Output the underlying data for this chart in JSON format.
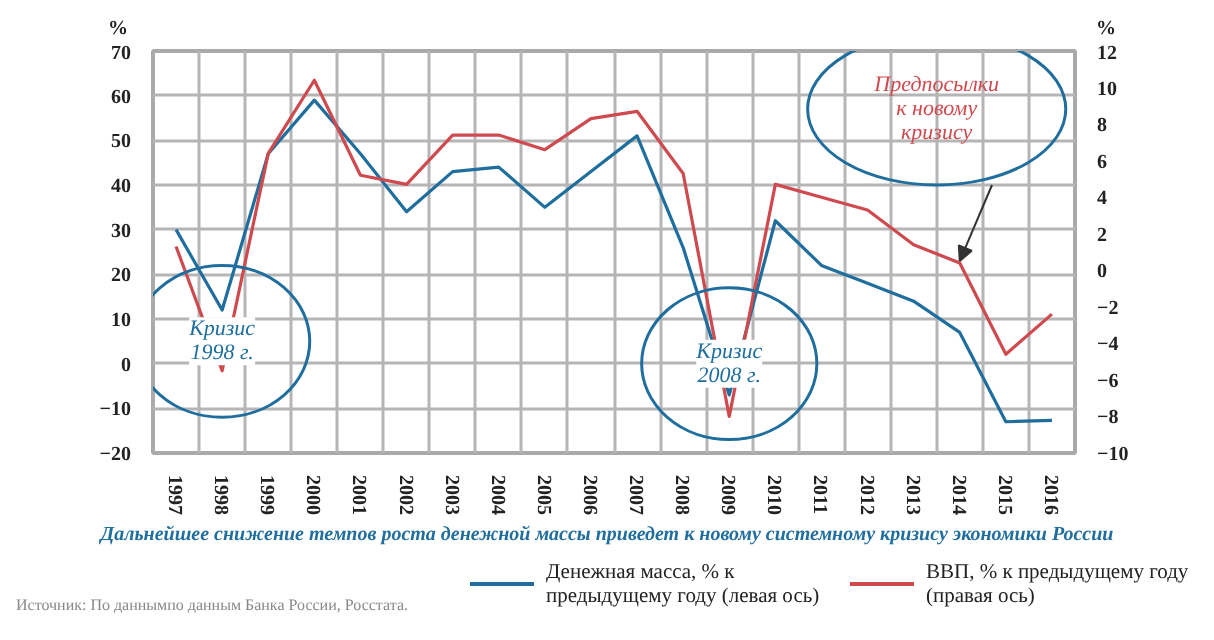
{
  "chart_data": {
    "type": "line",
    "categories": [
      "1997",
      "1998",
      "1999",
      "2000",
      "2001",
      "2002",
      "2003",
      "2004",
      "2005",
      "2006",
      "2007",
      "2008",
      "2009",
      "2010",
      "2011",
      "2012",
      "2013",
      "2014",
      "2015",
      "2016"
    ],
    "series": [
      {
        "name": "Денежная масса, % к предыдущему году (левая ось)",
        "color": "#1f6e9e",
        "values": [
          30,
          12,
          47,
          59,
          47,
          34,
          43,
          44,
          35,
          43,
          51,
          26,
          -7,
          32,
          22,
          18,
          14,
          7,
          -13,
          -12.7
        ]
      },
      {
        "name": "ВВП, % к предыдущему году (правая ось)",
        "color": "#cf4a4f",
        "axis": "y2",
        "values": [
          1.3,
          -5.5,
          6.4,
          10.4,
          5.2,
          4.7,
          7.4,
          7.4,
          6.6,
          8.3,
          8.7,
          5.3,
          -8.0,
          4.7,
          4.0,
          3.3,
          1.4,
          0.4,
          -4.6,
          -2.4
        ]
      }
    ],
    "ylabel": "%",
    "y2label": "%",
    "ylim": [
      -20,
      70
    ],
    "yticks": [
      -20,
      -10,
      0,
      10,
      20,
      30,
      40,
      50,
      60,
      70
    ],
    "y2lim": [
      -10,
      12
    ],
    "y2ticks": [
      -10,
      -8,
      -6,
      -4,
      -2,
      0,
      2,
      4,
      6,
      8,
      10,
      12
    ],
    "grid": true,
    "legend": "bottom right",
    "marker": "none",
    "line_style": "solid",
    "annotations": [
      {
        "text": "Кризис\n1998 г.",
        "x": "1998",
        "y": 5
      },
      {
        "text": "Кризис\n2008 г.",
        "x": "2009",
        "y": 0
      },
      "Предпосылки\nк новому\nкризису",
      "Дальнейшее снижение темпов роста денежной массы приведет к новому системному кризису экономики России",
      "Источник: По даннымпо данным Банка России, Росстата."
    ]
  }
}
